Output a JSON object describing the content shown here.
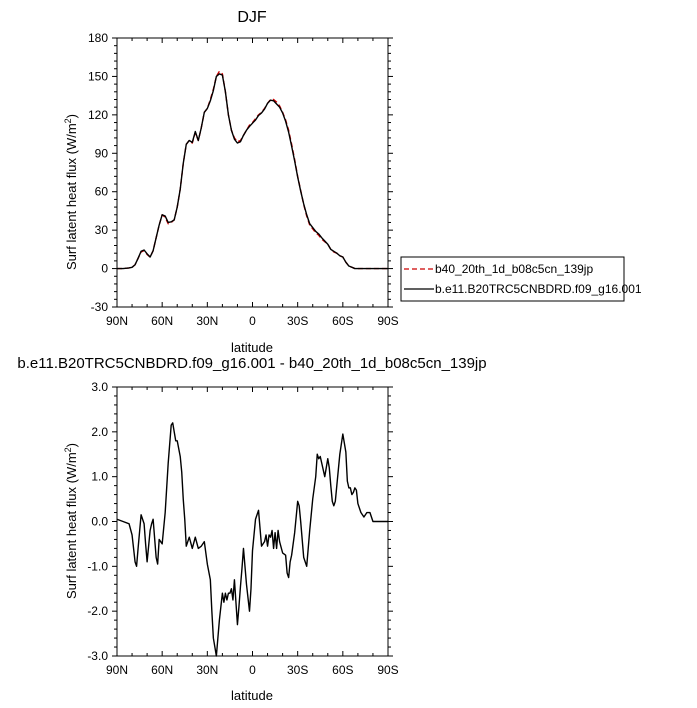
{
  "chart_data": [
    {
      "type": "line",
      "title": "DJF",
      "xlabel": "latitude",
      "ylabel": "Surf latent heat flux (W/m",
      "ylabel_sup": "2",
      "ylabel_close": ")",
      "xlim": [
        90,
        -90
      ],
      "ylim": [
        -30,
        180
      ],
      "x_ticks": [
        90,
        60,
        30,
        0,
        -30,
        -60,
        -90
      ],
      "x_tick_labels": [
        "90N",
        "60N",
        "30N",
        "0",
        "30S",
        "60S",
        "90S"
      ],
      "y_ticks": [
        -30,
        0,
        30,
        60,
        90,
        120,
        150,
        180
      ],
      "y_tick_labels": [
        "-30",
        "0",
        "30",
        "60",
        "90",
        "120",
        "150",
        "180"
      ],
      "legend_position": "right",
      "series": [
        {
          "name": "b40_20th_1d_b08c5cn_139jp",
          "color": "#cc0000",
          "dash": "dashed",
          "x": [
            90,
            86,
            82,
            80,
            78,
            76,
            74,
            72,
            70,
            68,
            66,
            64,
            62,
            60,
            58,
            56,
            54,
            52,
            50,
            48,
            46,
            44,
            42,
            40,
            38,
            36,
            34,
            32,
            30,
            28,
            26,
            24,
            22,
            20,
            18,
            16,
            14,
            12,
            10,
            8,
            6,
            4,
            2,
            0,
            -2,
            -4,
            -6,
            -8,
            -10,
            -12,
            -14,
            -16,
            -18,
            -20,
            -22,
            -24,
            -26,
            -28,
            -30,
            -32,
            -34,
            -36,
            -38,
            -40,
            -42,
            -44,
            -46,
            -48,
            -50,
            -52,
            -54,
            -56,
            -58,
            -60,
            -62,
            -64,
            -66,
            -68,
            -70,
            -72,
            -74,
            -76,
            -78,
            -80,
            -84,
            -90
          ],
          "y": [
            0,
            0,
            0.5,
            1,
            3,
            8,
            13,
            14,
            11,
            9,
            14,
            24,
            34,
            42,
            40,
            35,
            36,
            38,
            48,
            62,
            82,
            97,
            100,
            98,
            106,
            100,
            110,
            122,
            125,
            132,
            140,
            150,
            154,
            152,
            138,
            120,
            108,
            102,
            99,
            100,
            104,
            108,
            112,
            114,
            117,
            120,
            122,
            125,
            129,
            132,
            132,
            130,
            127,
            122,
            116,
            108,
            97,
            85,
            72,
            61,
            50,
            41,
            34,
            31,
            28,
            26,
            23,
            21,
            19,
            15,
            13,
            12,
            10,
            9,
            5,
            2,
            1,
            0,
            0,
            0,
            0,
            0,
            0,
            0,
            0,
            0
          ]
        },
        {
          "name": "b.e11.B20TRC5CNBDRD.f09_g16.001",
          "color": "#000000",
          "dash": "solid",
          "x": [
            90,
            86,
            82,
            80,
            78,
            76,
            74,
            72,
            70,
            68,
            66,
            64,
            62,
            60,
            58,
            56,
            54,
            52,
            50,
            48,
            46,
            44,
            42,
            40,
            38,
            36,
            34,
            32,
            30,
            28,
            26,
            24,
            22,
            20,
            18,
            16,
            14,
            12,
            10,
            8,
            6,
            4,
            2,
            0,
            -2,
            -4,
            -6,
            -8,
            -10,
            -12,
            -14,
            -16,
            -18,
            -20,
            -22,
            -24,
            -26,
            -28,
            -30,
            -32,
            -34,
            -36,
            -38,
            -40,
            -42,
            -44,
            -46,
            -48,
            -50,
            -52,
            -54,
            -56,
            -58,
            -60,
            -62,
            -64,
            -66,
            -68,
            -70,
            -72,
            -74,
            -76,
            -78,
            -80,
            -84,
            -90
          ],
          "y": [
            0,
            0,
            0.5,
            1,
            3,
            8,
            13.5,
            14.5,
            11.5,
            9,
            14,
            24,
            34,
            42,
            41,
            36,
            36.5,
            38,
            48,
            62,
            82,
            97,
            100,
            98.5,
            107,
            100,
            110,
            122,
            125,
            131,
            139,
            150,
            152,
            151,
            138,
            120,
            108,
            101,
            98,
            99,
            104,
            108,
            111,
            113.5,
            116,
            119.5,
            121.5,
            124.5,
            129,
            131.5,
            131,
            128.5,
            126,
            121.5,
            115,
            106.5,
            95.5,
            84,
            71.5,
            60.5,
            50.5,
            42,
            35,
            32,
            29,
            27,
            24,
            21.5,
            19,
            15,
            13.5,
            12,
            10,
            9,
            5,
            2,
            1,
            0,
            0,
            0,
            0,
            0,
            0,
            0,
            0,
            0
          ]
        }
      ]
    },
    {
      "type": "line",
      "title": "b.e11.B20TRC5CNBDRD.f09_g16.001 - b40_20th_1d_b08c5cn_139jp",
      "xlabel": "latitude",
      "ylabel": "Surf latent heat flux (W/m",
      "ylabel_sup": "2",
      "ylabel_close": ")",
      "xlim": [
        90,
        -90
      ],
      "ylim": [
        -3.0,
        3.0
      ],
      "x_ticks": [
        90,
        60,
        30,
        0,
        -30,
        -60,
        -90
      ],
      "x_tick_labels": [
        "90N",
        "60N",
        "30N",
        "0",
        "30S",
        "60S",
        "90S"
      ],
      "y_ticks": [
        -3.0,
        -2.0,
        -1.0,
        0.0,
        1.0,
        2.0,
        3.0
      ],
      "y_tick_labels": [
        "-3.0",
        "-2.0",
        "-1.0",
        "0.0",
        "1.0",
        "2.0",
        "3.0"
      ],
      "series": [
        {
          "color": "#000000",
          "dash": "solid",
          "x": [
            90,
            86,
            82,
            80,
            78,
            77,
            76,
            74,
            72,
            71,
            70,
            68,
            67,
            66,
            64,
            63,
            62,
            60,
            58,
            56,
            54,
            53,
            52,
            51,
            50,
            48,
            47,
            46,
            45,
            44,
            42,
            40,
            38,
            36,
            34,
            32,
            30,
            28,
            27,
            26,
            24,
            22,
            21,
            20,
            19,
            18,
            17,
            16,
            15,
            14,
            13,
            12,
            10,
            9,
            8,
            7,
            6,
            4,
            2,
            1,
            0,
            -2,
            -4,
            -6,
            -8,
            -9,
            -10,
            -11,
            -12,
            -13,
            -14,
            -15,
            -16,
            -17,
            -18,
            -20,
            -22,
            -23,
            -24,
            -25,
            -26,
            -28,
            -30,
            -31,
            -32,
            -34,
            -36,
            -37,
            -38,
            -40,
            -42,
            -43,
            -44,
            -45,
            -46,
            -48,
            -50,
            -51,
            -52,
            -53,
            -54,
            -55,
            -56,
            -58,
            -60,
            -62,
            -63,
            -64,
            -65,
            -66,
            -67,
            -68,
            -69,
            -70,
            -72,
            -74,
            -76,
            -78,
            -80,
            -84,
            -90
          ],
          "y": [
            0.05,
            0.0,
            -0.05,
            -0.3,
            -0.9,
            -1.0,
            -0.6,
            0.15,
            -0.05,
            -0.5,
            -0.9,
            -0.2,
            -0.05,
            0.05,
            -0.8,
            -0.95,
            -0.4,
            -0.5,
            0.2,
            1.3,
            2.15,
            2.2,
            2.0,
            1.8,
            1.8,
            1.45,
            1.1,
            0.5,
            0.05,
            -0.55,
            -0.35,
            -0.6,
            -0.35,
            -0.6,
            -0.55,
            -0.45,
            -0.95,
            -1.3,
            -2.0,
            -2.6,
            -3.0,
            -2.2,
            -1.9,
            -1.6,
            -1.8,
            -1.6,
            -1.75,
            -1.6,
            -1.6,
            -1.5,
            -1.75,
            -1.3,
            -2.3,
            -1.9,
            -1.45,
            -1.05,
            -0.6,
            -1.4,
            -2.0,
            -1.5,
            -0.65,
            0.05,
            0.25,
            -0.55,
            -0.45,
            -0.3,
            -0.55,
            -0.3,
            -0.35,
            -0.2,
            -0.6,
            -0.25,
            -0.6,
            -0.2,
            -0.45,
            -0.7,
            -0.75,
            -1.15,
            -1.25,
            -0.9,
            -0.75,
            -0.25,
            0.45,
            0.35,
            0.0,
            -0.8,
            -1.0,
            -0.6,
            -0.2,
            0.5,
            1.0,
            1.5,
            1.4,
            1.45,
            1.3,
            1.0,
            1.4,
            1.2,
            0.8,
            0.45,
            0.35,
            0.45,
            0.8,
            1.5,
            1.95,
            1.55,
            0.9,
            0.75,
            0.75,
            0.6,
            0.65,
            0.75,
            0.7,
            0.4,
            0.2,
            0.1,
            0.2,
            0.2,
            0.0,
            0.0,
            0.0
          ]
        }
      ]
    }
  ]
}
